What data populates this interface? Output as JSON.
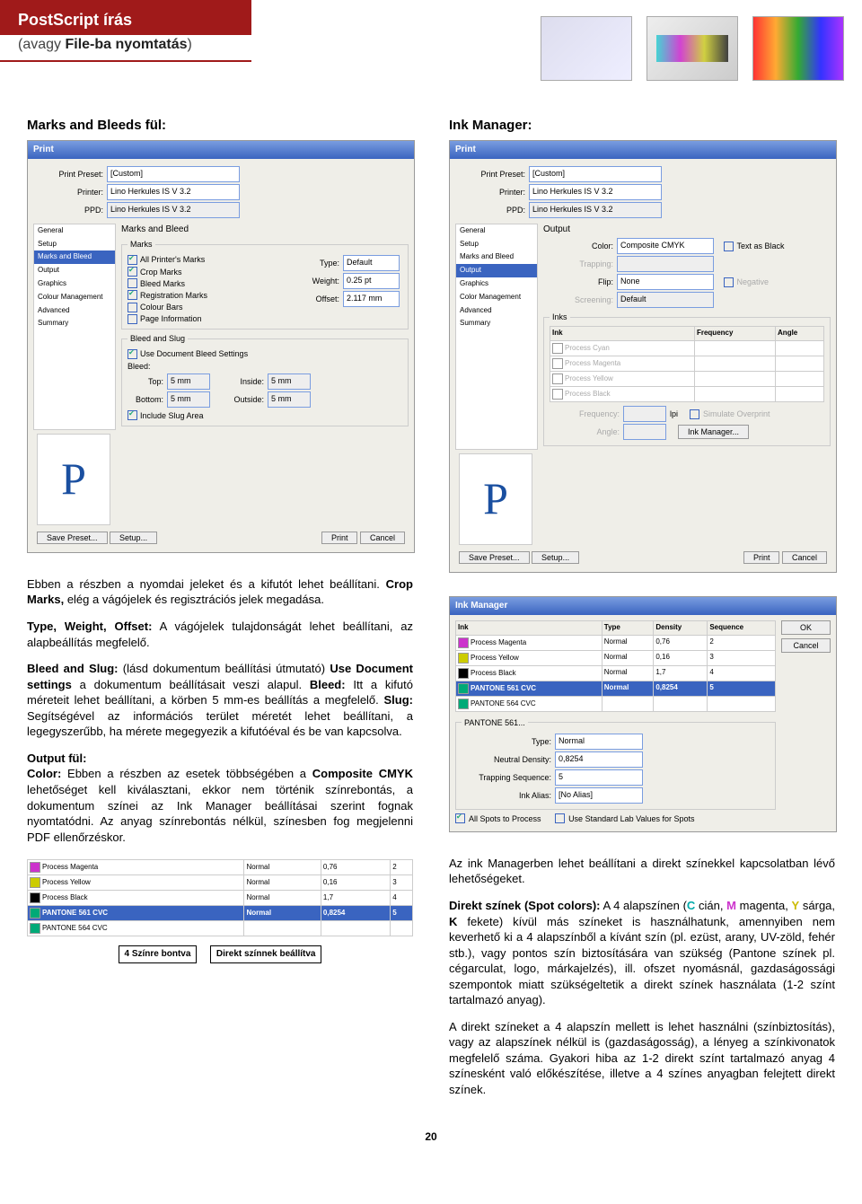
{
  "header": {
    "title": "PostScript írás",
    "subtitle_pre": "(avagy ",
    "subtitle_b": "File-ba nyomtatás",
    "subtitle_post": ")"
  },
  "left": {
    "h": "Marks and Bleeds fül:",
    "dlg": {
      "title": "Print",
      "preset_lbl": "Print Preset:",
      "preset": "[Custom]",
      "printer_lbl": "Printer:",
      "printer": "Lino Herkules IS V 3.2",
      "ppd_lbl": "PPD:",
      "ppd": "Lino Herkules IS V 3.2",
      "side": [
        "General",
        "Setup",
        "Marks and Bleed",
        "Output",
        "Graphics",
        "Colour Management",
        "Advanced",
        "Summary"
      ],
      "side_active": 2,
      "panel_title": "Marks and Bleed",
      "grp_marks": "Marks",
      "chk": [
        {
          "l": "All Printer's Marks",
          "on": true
        },
        {
          "l": "Crop Marks",
          "on": true
        },
        {
          "l": "Bleed Marks",
          "on": false
        },
        {
          "l": "Registration Marks",
          "on": true
        },
        {
          "l": "Colour Bars",
          "on": false
        },
        {
          "l": "Page Information",
          "on": false
        }
      ],
      "type_l": "Type:",
      "type": "Default",
      "weight_l": "Weight:",
      "weight": "0.25 pt",
      "offset_l": "Offset:",
      "offset": "2.117 mm",
      "grp_bleed": "Bleed and Slug",
      "use_doc": "Use Document Bleed Settings",
      "bleed_l": "Bleed:",
      "top_l": "Top:",
      "top": "5 mm",
      "bottom_l": "Bottom:",
      "bottom": "5 mm",
      "inside_l": "Inside:",
      "inside": "5 mm",
      "outside_l": "Outside:",
      "outside": "5 mm",
      "slug": "Include Slug Area",
      "btn_save": "Save Preset...",
      "btn_setup": "Setup...",
      "btn_print": "Print",
      "btn_cancel": "Cancel"
    },
    "p1a": "Ebben a részben a nyomdai jeleket és a kifutót lehet beállítani. ",
    "p1b": "Crop Marks,",
    "p1c": " elég a vágójelek és regisztrációs jelek megadása.",
    "p2a": "Type, Weight, Offset:",
    "p2b": " A vágójelek tulajdonságát lehet beállítani, az alapbeállítás megfelelő.",
    "p3a": "Bleed and Slug:",
    "p3b": " (lásd dokumentum beállítási útmutató) ",
    "p3c": "Use Document settings",
    "p3d": " a dokumentum beállításait veszi alapul. ",
    "p3e": "Bleed:",
    "p3f": " Itt a kifutó méreteit lehet beállítani, a körben 5 mm-es beállítás a megfelelő. ",
    "p3g": "Slug:",
    "p3h": " Segítségével az információs terület méretét lehet beállítani, a legegyszerűbb, ha mérete megegyezik a kifutóéval és be van kapcsolva.",
    "out_h": "Output fül:",
    "out1a": "Color:",
    "out1b": " Ebben a részben az esetek többségében a ",
    "out1c": "Composite CMYK",
    "out1d": " lehetőséget kell kiválasztani, ekkor nem történik színrebontás, a dokumentum színei az Ink Manager beállításai szerint fognak nyomtatódni. Az anyag színrebontás nélkül, színesben fog megjelenni PDF ellenőrzéskor.",
    "tbl": {
      "rows": [
        {
          "sw": "#c3c",
          "n": "Process Magenta",
          "t": "Normal",
          "d": "0,76",
          "s": "2"
        },
        {
          "sw": "#cc0",
          "n": "Process Yellow",
          "t": "Normal",
          "d": "0,16",
          "s": "3"
        },
        {
          "sw": "#000",
          "n": "Process Black",
          "t": "Normal",
          "d": "1,7",
          "s": "4"
        },
        {
          "sw": "#0a7",
          "n": "PANTONE 561 CVC",
          "t": "Normal",
          "d": "0,8254",
          "s": "5",
          "hl": true
        },
        {
          "sw": "#0a7",
          "n": "PANTONE 564 CVC",
          "t": "",
          "d": "",
          "s": ""
        }
      ]
    },
    "call1": "4 Színre bontva",
    "call2": "Direkt színnek beállítva"
  },
  "right": {
    "h": "Ink Manager:",
    "dlg": {
      "title": "Print",
      "side": [
        "General",
        "Setup",
        "Marks and Bleed",
        "Output",
        "Graphics",
        "Color Management",
        "Advanced",
        "Summary"
      ],
      "side_active": 3,
      "panel": "Output",
      "color_l": "Color:",
      "color": "Composite CMYK",
      "text_black": "Text as Black",
      "trap_l": "Trapping:",
      "flip_l": "Flip:",
      "flip": "None",
      "neg": "Negative",
      "scr_l": "Screening:",
      "scr": "Default",
      "inks_l": "Inks",
      "inkhdr": [
        "Ink",
        "Frequency",
        "Angle"
      ],
      "inks": [
        "Process Cyan",
        "Process Magenta",
        "Process Yellow",
        "Process Black"
      ],
      "freq_l": "Frequency:",
      "lpi": "lpi",
      "sim": "Simulate Overprint",
      "ang_l": "Angle:",
      "inkmgr": "Ink Manager..."
    },
    "mgr": {
      "title": "Ink Manager",
      "hdr": [
        "Ink",
        "Type",
        "Density",
        "Sequence"
      ],
      "rows": [
        {
          "sw": "#c3c",
          "n": "Process Magenta",
          "t": "Normal",
          "d": "0,76",
          "s": "2"
        },
        {
          "sw": "#cc0",
          "n": "Process Yellow",
          "t": "Normal",
          "d": "0,16",
          "s": "3"
        },
        {
          "sw": "#000",
          "n": "Process Black",
          "t": "Normal",
          "d": "1,7",
          "s": "4"
        },
        {
          "sw": "#0a7",
          "n": "PANTONE 561 CVC",
          "t": "Normal",
          "d": "0,8254",
          "s": "5",
          "hl": true
        },
        {
          "sw": "#0a7",
          "n": "PANTONE 564 CVC",
          "t": "",
          "d": "",
          "s": ""
        }
      ],
      "ok": "OK",
      "cancel": "Cancel",
      "grp": "PANTONE 561...",
      "type_l": "Type:",
      "type": "Normal",
      "nd_l": "Neutral Density:",
      "nd": "0,8254",
      "ts_l": "Trapping Sequence:",
      "ts": "5",
      "alias_l": "Ink Alias:",
      "alias": "[No Alias]",
      "all": "All Spots to Process",
      "lab": "Use Standard Lab Values for Spots"
    },
    "p1": "Az ink Managerben lehet beállítani a direkt színekkel kapcsolatban lévő lehetőségeket.",
    "p2a": "Direkt színek (Spot colors):",
    "p2b": " A 4 alapszínen (",
    "p2c": " cián, ",
    "p2d": " magenta, ",
    "p2e": " sárga, ",
    "p2f": " fekete) kívül más színeket is használhatunk, amennyiben nem keverhető ki a 4 alapszínből a kívánt szín (pl. ezüst, arany, UV-zöld, fehér stb.), vagy pontos szín biztosítására van szükség (Pantone színek pl. cégarculat, logo, márkajelzés), ill. ofszet nyomásnál, gazdaságossági szempontok miatt szükségeltetik a direkt színek használata (1-2 színt tartalmazó anyag).",
    "p3": "A direkt színeket a 4 alapszín mellett is lehet használni (színbiztosítás), vagy az alapszínek nélkül is (gazdaságosság), a lényeg a színkivonatok megfelelő száma. Gyakori hiba az 1-2 direkt színt tartalmazó anyag 4 színesként való előkészítése, illetve a 4 színes anyagban felejtett direkt színek."
  },
  "pagenum": "20"
}
